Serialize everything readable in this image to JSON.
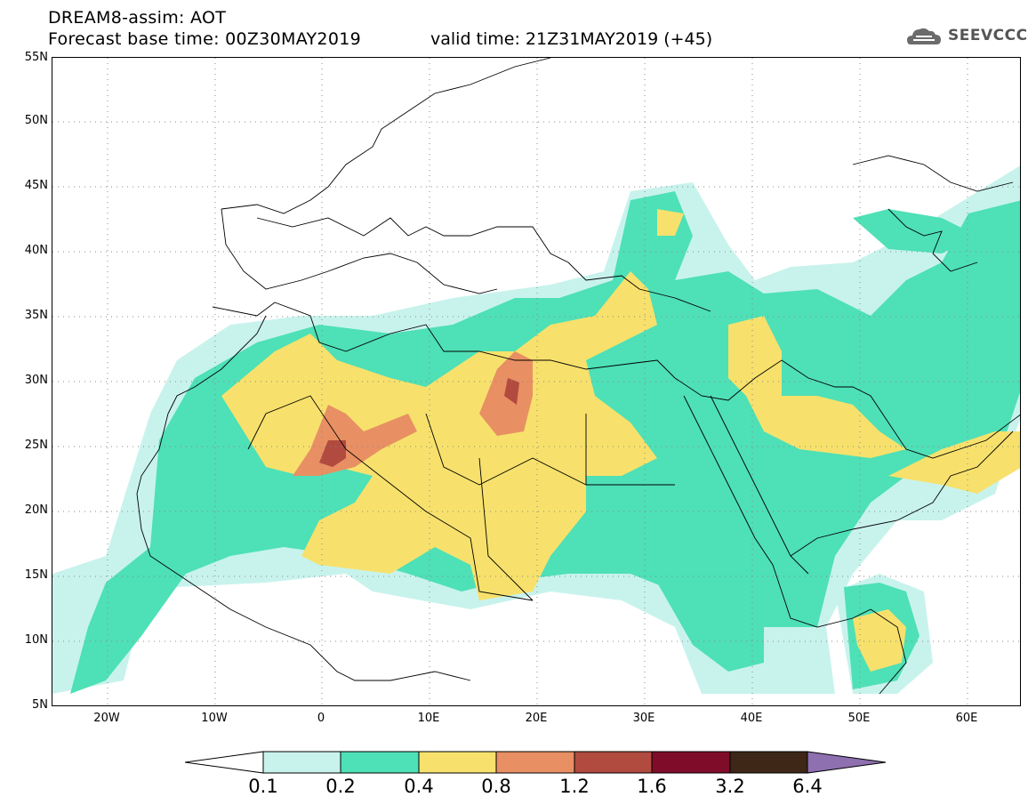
{
  "header": {
    "line1": "DREAM8-assim: AOT",
    "line2_base": "Forecast base time: 00Z30MAY2019",
    "line2_valid": "valid time: 21Z31MAY2019 (+45)"
  },
  "logo": {
    "text": "SEEVCCC",
    "icon": "cloud-icon"
  },
  "map": {
    "latitude_labels": [
      "55N",
      "50N",
      "45N",
      "40N",
      "35N",
      "30N",
      "25N",
      "20N",
      "15N",
      "10N",
      "5N"
    ],
    "longitude_labels": [
      "20W",
      "10W",
      "0",
      "10E",
      "20E",
      "30E",
      "40E",
      "50E",
      "60E"
    ],
    "grid": true
  },
  "colorbar": {
    "labels": [
      "0.1",
      "0.2",
      "0.4",
      "0.8",
      "1.2",
      "1.6",
      "3.2",
      "6.4"
    ],
    "colors": [
      "#ffffff",
      "#c8f3ec",
      "#4ee0b6",
      "#f7e16c",
      "#e88f63",
      "#b14a3f",
      "#7f0d2a",
      "#3e2716",
      "#8e6fb0"
    ]
  }
}
